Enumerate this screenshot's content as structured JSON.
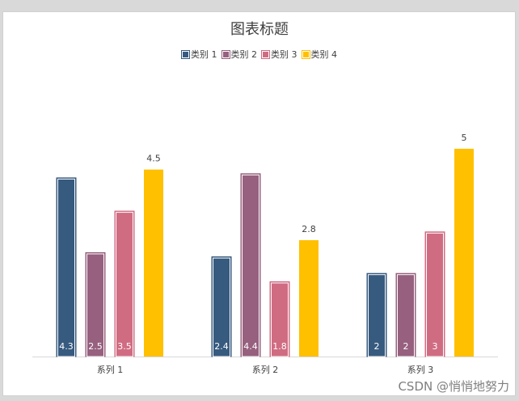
{
  "chart_data": {
    "type": "bar",
    "title": "图表标题",
    "categories": [
      "系列 1",
      "系列 2",
      "系列 3"
    ],
    "series": [
      {
        "name": "类别 1",
        "color": "#375a7f",
        "values": [
          4.3,
          2.4,
          2
        ],
        "label_position": "inside-base"
      },
      {
        "name": "类别 2",
        "color": "#96607e",
        "values": [
          2.5,
          4.4,
          2
        ],
        "label_position": "inside-base"
      },
      {
        "name": "类别 3",
        "color": "#d06c82",
        "values": [
          3.5,
          1.8,
          3
        ],
        "label_position": "inside-base"
      },
      {
        "name": "类别 4",
        "color": "#ffc000",
        "values": [
          4.5,
          2.8,
          5
        ],
        "label_position": "outside-end"
      }
    ],
    "ylim": [
      0,
      5
    ],
    "grid": false,
    "legend": "top-center",
    "xlabel": "",
    "ylabel": ""
  },
  "watermark": "CSDN @悄悄地努力"
}
